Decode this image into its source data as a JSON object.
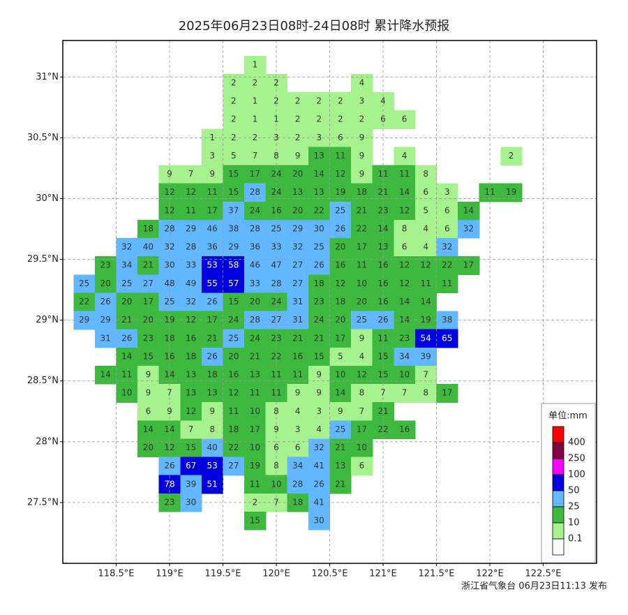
{
  "chart_data": {
    "type": "grid_map",
    "title": "2025年06月23日08时-24日08时 累计降水预报",
    "footer": "浙江省气象台 06月23日11:13 发布",
    "xlim": [
      118.0,
      123.0
    ],
    "ylim": [
      27.0,
      31.3
    ],
    "xticks": [
      {
        "value": 118.5,
        "label": "118.5°E"
      },
      {
        "value": 119,
        "label": "119°E"
      },
      {
        "value": 119.5,
        "label": "119.5°E"
      },
      {
        "value": 120,
        "label": "120°E"
      },
      {
        "value": 120.5,
        "label": "120.5°E"
      },
      {
        "value": 121,
        "label": "121°E"
      },
      {
        "value": 121.5,
        "label": "121.5°E"
      },
      {
        "value": 122,
        "label": "122°E"
      },
      {
        "value": 122.5,
        "label": "122.5°E"
      }
    ],
    "yticks": [
      {
        "value": 27.5,
        "label": "27.5°N"
      },
      {
        "value": 28,
        "label": "28°N"
      },
      {
        "value": 28.5,
        "label": "28.5°N"
      },
      {
        "value": 29,
        "label": "29°N"
      },
      {
        "value": 29.5,
        "label": "29.5°N"
      },
      {
        "value": 30,
        "label": "30°N"
      },
      {
        "value": 30.5,
        "label": "30.5°N"
      },
      {
        "value": 31,
        "label": "31°N"
      }
    ],
    "grid": true,
    "legend": {
      "title": "单位:mm",
      "levels": [
        0.1,
        10,
        25,
        50,
        100,
        250,
        400
      ],
      "colors": [
        "#ffffff",
        "#a6f28f",
        "#3dba3d",
        "#61b8ff",
        "#0000e1",
        "#fa00fa",
        "#800040",
        "#ff0000"
      ]
    },
    "lons": [
      118.2,
      118.4,
      118.6,
      118.8,
      119.0,
      119.2,
      119.4,
      119.6,
      119.8,
      120.0,
      120.2,
      120.4,
      120.6,
      120.8,
      121.0,
      121.2,
      121.4,
      121.6,
      121.8,
      122.0,
      122.2
    ],
    "rows": [
      {
        "lat": 31.1,
        "values": [
          null,
          null,
          null,
          null,
          null,
          null,
          null,
          null,
          1,
          null,
          null,
          null,
          null,
          null,
          null,
          null,
          null,
          null,
          null,
          null,
          null
        ]
      },
      {
        "lat": 30.95,
        "values": [
          null,
          null,
          null,
          null,
          null,
          null,
          null,
          2,
          2,
          2,
          null,
          null,
          null,
          4,
          null,
          null,
          null,
          null,
          null,
          null,
          null
        ]
      },
      {
        "lat": 30.8,
        "values": [
          null,
          null,
          null,
          null,
          null,
          null,
          null,
          2,
          1,
          2,
          2,
          2,
          2,
          3,
          4,
          null,
          null,
          null,
          null,
          null,
          null
        ]
      },
      {
        "lat": 30.65,
        "values": [
          null,
          null,
          null,
          null,
          null,
          null,
          null,
          2,
          1,
          1,
          2,
          2,
          2,
          2,
          6,
          6,
          null,
          null,
          null,
          null,
          null
        ]
      },
      {
        "lat": 30.5,
        "values": [
          null,
          null,
          null,
          null,
          null,
          null,
          1,
          2,
          2,
          3,
          2,
          3,
          6,
          9,
          null,
          null,
          null,
          null,
          null,
          null,
          null
        ]
      },
      {
        "lat": 30.35,
        "values": [
          null,
          null,
          null,
          null,
          null,
          null,
          3,
          5,
          7,
          8,
          9,
          13,
          11,
          9,
          null,
          4,
          null,
          null,
          null,
          null,
          2
        ]
      },
      {
        "lat": 30.2,
        "values": [
          null,
          null,
          null,
          null,
          9,
          7,
          9,
          15,
          17,
          24,
          20,
          14,
          12,
          9,
          11,
          11,
          8,
          null,
          null,
          null,
          null
        ]
      },
      {
        "lat": 30.05,
        "values": [
          null,
          null,
          null,
          null,
          12,
          12,
          11,
          15,
          28,
          24,
          13,
          13,
          19,
          18,
          21,
          14,
          6,
          3,
          null,
          11,
          19
        ]
      },
      {
        "lat": 29.9,
        "values": [
          null,
          null,
          null,
          null,
          12,
          11,
          17,
          37,
          24,
          16,
          20,
          22,
          25,
          21,
          23,
          12,
          5,
          6,
          14,
          null,
          null
        ]
      },
      {
        "lat": 29.75,
        "values": [
          null,
          null,
          null,
          18,
          28,
          29,
          46,
          38,
          28,
          25,
          29,
          30,
          26,
          22,
          14,
          8,
          4,
          6,
          32,
          null,
          null
        ]
      },
      {
        "lat": 29.6,
        "values": [
          null,
          null,
          32,
          40,
          32,
          28,
          36,
          29,
          36,
          33,
          32,
          25,
          20,
          17,
          13,
          6,
          4,
          32,
          null,
          null,
          null
        ]
      },
      {
        "lat": 29.45,
        "values": [
          null,
          23,
          34,
          21,
          30,
          33,
          53,
          58,
          46,
          47,
          27,
          26,
          16,
          11,
          16,
          12,
          12,
          22,
          17,
          null,
          null
        ]
      },
      {
        "lat": 29.3,
        "values": [
          25,
          20,
          25,
          27,
          48,
          49,
          55,
          57,
          33,
          28,
          27,
          18,
          12,
          10,
          16,
          12,
          11,
          11,
          null,
          null,
          null
        ]
      },
      {
        "lat": 29.15,
        "values": [
          22,
          26,
          20,
          17,
          25,
          32,
          26,
          15,
          20,
          24,
          31,
          23,
          18,
          20,
          16,
          14,
          14,
          null,
          null,
          null,
          null
        ]
      },
      {
        "lat": 29.0,
        "values": [
          29,
          29,
          21,
          20,
          19,
          12,
          17,
          24,
          28,
          27,
          31,
          24,
          20,
          25,
          26,
          14,
          19,
          38,
          null,
          null,
          null
        ]
      },
      {
        "lat": 28.85,
        "values": [
          null,
          31,
          26,
          23,
          18,
          16,
          21,
          25,
          24,
          23,
          21,
          21,
          17,
          9,
          11,
          23,
          54,
          65,
          null,
          null,
          null
        ]
      },
      {
        "lat": 28.7,
        "values": [
          null,
          null,
          14,
          15,
          16,
          18,
          26,
          20,
          21,
          22,
          16,
          15,
          5,
          4,
          15,
          34,
          39,
          null,
          null,
          null,
          null
        ]
      },
      {
        "lat": 28.55,
        "values": [
          null,
          14,
          11,
          9,
          14,
          13,
          18,
          16,
          13,
          11,
          11,
          9,
          10,
          12,
          15,
          10,
          7,
          null,
          null,
          null,
          null
        ]
      },
      {
        "lat": 28.4,
        "values": [
          null,
          null,
          10,
          9,
          7,
          13,
          13,
          12,
          11,
          11,
          9,
          9,
          14,
          8,
          7,
          7,
          8,
          17,
          null,
          null,
          null
        ]
      },
      {
        "lat": 28.25,
        "values": [
          null,
          null,
          null,
          6,
          9,
          12,
          9,
          11,
          10,
          8,
          4,
          3,
          9,
          7,
          21,
          null,
          null,
          null,
          null,
          null,
          null
        ]
      },
      {
        "lat": 28.1,
        "values": [
          null,
          null,
          null,
          14,
          14,
          7,
          8,
          18,
          17,
          9,
          3,
          4,
          25,
          17,
          22,
          16,
          null,
          null,
          null,
          null,
          null
        ]
      },
      {
        "lat": 27.95,
        "values": [
          null,
          null,
          null,
          20,
          12,
          15,
          40,
          22,
          10,
          6,
          6,
          32,
          21,
          10,
          null,
          null,
          null,
          null,
          null,
          null,
          null
        ]
      },
      {
        "lat": 27.8,
        "values": [
          null,
          null,
          null,
          null,
          26,
          67,
          53,
          27,
          19,
          8,
          34,
          41,
          13,
          6,
          null,
          null,
          null,
          null,
          null,
          null,
          null
        ]
      },
      {
        "lat": 27.65,
        "values": [
          null,
          null,
          null,
          null,
          78,
          39,
          51,
          null,
          11,
          10,
          28,
          26,
          21,
          null,
          null,
          null,
          null,
          null,
          null,
          null,
          null
        ]
      },
      {
        "lat": 27.5,
        "values": [
          null,
          null,
          null,
          null,
          23,
          30,
          null,
          null,
          2,
          7,
          18,
          41,
          null,
          null,
          null,
          null,
          null,
          null,
          null,
          null,
          null
        ]
      },
      {
        "lat": 27.35,
        "values": [
          null,
          null,
          null,
          null,
          null,
          null,
          null,
          null,
          15,
          null,
          null,
          30,
          null,
          null,
          null,
          null,
          null,
          null,
          null,
          null,
          null
        ]
      }
    ]
  }
}
